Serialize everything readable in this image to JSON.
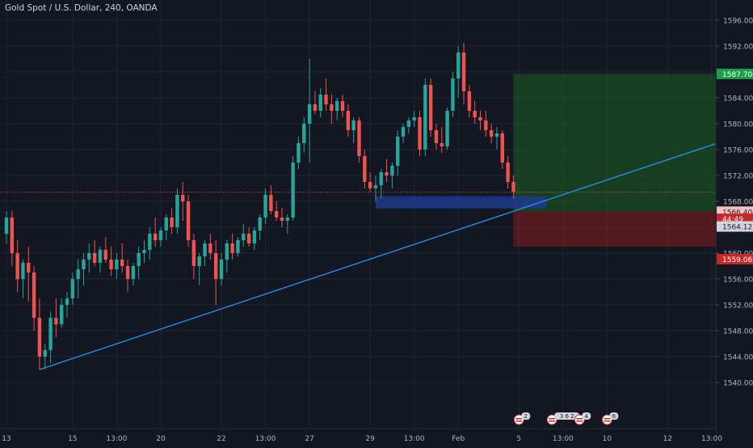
{
  "title": "Gold Spot / U.S. Dollar, 240, OANDA",
  "colors": {
    "background": "#131722",
    "grid": "#1f2433",
    "text": "#b2b5be",
    "up": "#26a69a",
    "down": "#ef5350",
    "trendline": "#2196f3",
    "target_zone": "#1b5e20",
    "stop_zone": "#7f1d1d",
    "entry_zone": "#1e3a8a"
  },
  "chart_data": {
    "type": "candlestick",
    "symbol": "Gold Spot / U.S. Dollar",
    "interval": "240",
    "source": "OANDA",
    "y_ticks": [
      1540,
      1544,
      1548,
      1552,
      1556,
      1560,
      1564,
      1568,
      1572,
      1576,
      1580,
      1584,
      1588,
      1592,
      1596
    ],
    "y_tick_labels": [
      "1540.000",
      "1544.000",
      "1548.000",
      "1552.000",
      "1556.000",
      "1560.000",
      "1564.000",
      "1568.000",
      "1572.000",
      "1576.000",
      "1580.000",
      "1584.000",
      "1588.000",
      "1592.000",
      "1596.000"
    ],
    "x_labels": [
      {
        "label": "13",
        "bar": 0
      },
      {
        "label": "15",
        "bar": 12
      },
      {
        "label": "13:00",
        "bar": 20
      },
      {
        "label": "20",
        "bar": 28
      },
      {
        "label": "22",
        "bar": 39
      },
      {
        "label": "13:00",
        "bar": 47
      },
      {
        "label": "27",
        "bar": 55
      },
      {
        "label": "29",
        "bar": 66
      },
      {
        "label": "13:00",
        "bar": 74
      },
      {
        "label": "Feb",
        "bar": 82
      },
      {
        "label": "5",
        "bar": 93
      },
      {
        "label": "13:00",
        "bar": 101
      },
      {
        "label": "10",
        "bar": 109
      },
      {
        "label": "12",
        "bar": 120
      },
      {
        "label": "13:00",
        "bar": 128
      }
    ],
    "candles": [
      [
        1563.0,
        1566.5,
        1561.5,
        1565.5
      ],
      [
        1565.5,
        1566.5,
        1558.0,
        1560.0
      ],
      [
        1560.0,
        1562.0,
        1554.0,
        1556.0
      ],
      [
        1556.0,
        1559.0,
        1553.0,
        1558.5
      ],
      [
        1558.5,
        1561.0,
        1552.5,
        1557.0
      ],
      [
        1557.0,
        1558.0,
        1548.0,
        1550.0
      ],
      [
        1550.0,
        1553.0,
        1542.0,
        1544.0
      ],
      [
        1544.0,
        1546.0,
        1542.0,
        1545.0
      ],
      [
        1545.0,
        1551.0,
        1543.0,
        1550.0
      ],
      [
        1550.0,
        1553.0,
        1547.0,
        1549.0
      ],
      [
        1549.0,
        1553.0,
        1548.5,
        1552.0
      ],
      [
        1552.0,
        1554.0,
        1550.0,
        1553.0
      ],
      [
        1553.0,
        1557.0,
        1552.0,
        1556.0
      ],
      [
        1556.0,
        1559.0,
        1553.0,
        1557.5
      ],
      [
        1557.5,
        1560.0,
        1555.0,
        1559.0
      ],
      [
        1559.0,
        1561.5,
        1557.0,
        1560.0
      ],
      [
        1560.0,
        1562.0,
        1558.0,
        1558.5
      ],
      [
        1558.5,
        1561.0,
        1557.0,
        1560.5
      ],
      [
        1560.5,
        1562.5,
        1558.5,
        1559.0
      ],
      [
        1559.0,
        1561.0,
        1556.5,
        1557.5
      ],
      [
        1557.5,
        1560.0,
        1556.0,
        1559.0
      ],
      [
        1559.0,
        1561.5,
        1557.0,
        1558.0
      ],
      [
        1558.0,
        1559.0,
        1554.0,
        1556.0
      ],
      [
        1556.0,
        1558.5,
        1555.0,
        1558.0
      ],
      [
        1558.0,
        1561.0,
        1556.0,
        1560.0
      ],
      [
        1560.0,
        1562.0,
        1558.5,
        1560.5
      ],
      [
        1560.5,
        1564.0,
        1559.0,
        1563.0
      ],
      [
        1563.0,
        1565.5,
        1561.0,
        1562.0
      ],
      [
        1562.0,
        1564.0,
        1561.0,
        1563.5
      ],
      [
        1563.5,
        1566.0,
        1562.0,
        1565.5
      ],
      [
        1565.5,
        1567.0,
        1563.0,
        1564.0
      ],
      [
        1564.0,
        1570.0,
        1563.0,
        1569.0
      ],
      [
        1569.0,
        1571.0,
        1565.0,
        1568.0
      ],
      [
        1568.0,
        1569.0,
        1561.0,
        1562.0
      ],
      [
        1562.0,
        1563.0,
        1556.0,
        1558.0
      ],
      [
        1558.0,
        1560.0,
        1555.0,
        1559.5
      ],
      [
        1559.5,
        1562.0,
        1558.0,
        1561.5
      ],
      [
        1561.5,
        1563.0,
        1559.0,
        1560.0
      ],
      [
        1560.0,
        1562.0,
        1552.0,
        1556.0
      ],
      [
        1556.0,
        1560.0,
        1555.0,
        1559.0
      ],
      [
        1559.0,
        1562.0,
        1557.0,
        1561.5
      ],
      [
        1561.5,
        1563.0,
        1559.0,
        1560.0
      ],
      [
        1560.0,
        1562.5,
        1559.5,
        1562.0
      ],
      [
        1562.0,
        1564.5,
        1561.0,
        1563.0
      ],
      [
        1563.0,
        1564.0,
        1561.0,
        1561.5
      ],
      [
        1561.5,
        1564.0,
        1560.5,
        1563.5
      ],
      [
        1563.5,
        1566.0,
        1562.0,
        1565.5
      ],
      [
        1565.5,
        1570.0,
        1564.5,
        1569.0
      ],
      [
        1569.0,
        1570.5,
        1566.0,
        1566.5
      ],
      [
        1566.5,
        1568.0,
        1565.0,
        1565.5
      ],
      [
        1565.5,
        1567.0,
        1564.0,
        1565.0
      ],
      [
        1565.0,
        1566.0,
        1563.0,
        1565.5
      ],
      [
        1565.5,
        1575.0,
        1565.0,
        1574.0
      ],
      [
        1574.0,
        1578.0,
        1573.0,
        1577.0
      ],
      [
        1577.0,
        1581.0,
        1575.5,
        1580.0
      ],
      [
        1580.0,
        1590.0,
        1574.0,
        1583.0
      ],
      [
        1583.0,
        1585.0,
        1581.5,
        1582.0
      ],
      [
        1582.0,
        1585.5,
        1581.0,
        1584.5
      ],
      [
        1584.5,
        1587.0,
        1582.0,
        1583.0
      ],
      [
        1583.0,
        1584.5,
        1580.0,
        1582.0
      ],
      [
        1582.0,
        1584.0,
        1580.5,
        1583.5
      ],
      [
        1583.5,
        1584.5,
        1581.0,
        1582.0
      ],
      [
        1582.0,
        1583.0,
        1578.0,
        1579.0
      ],
      [
        1579.0,
        1581.0,
        1577.0,
        1580.5
      ],
      [
        1580.5,
        1581.0,
        1574.0,
        1575.0
      ],
      [
        1575.0,
        1576.0,
        1570.0,
        1571.0
      ],
      [
        1571.0,
        1572.5,
        1569.5,
        1570.0
      ],
      [
        1570.0,
        1572.0,
        1568.0,
        1570.5
      ],
      [
        1570.5,
        1573.0,
        1568.5,
        1572.5
      ],
      [
        1572.5,
        1574.5,
        1571.0,
        1572.0
      ],
      [
        1572.0,
        1574.0,
        1570.0,
        1573.5
      ],
      [
        1573.5,
        1579.0,
        1572.0,
        1578.0
      ],
      [
        1578.0,
        1580.0,
        1577.0,
        1579.5
      ],
      [
        1579.5,
        1581.0,
        1578.5,
        1580.5
      ],
      [
        1580.5,
        1582.0,
        1579.5,
        1581.0
      ],
      [
        1581.0,
        1582.0,
        1575.0,
        1576.0
      ],
      [
        1576.0,
        1587.0,
        1575.0,
        1586.0
      ],
      [
        1586.0,
        1587.0,
        1578.0,
        1579.0
      ],
      [
        1579.0,
        1580.0,
        1576.0,
        1577.0
      ],
      [
        1577.0,
        1579.5,
        1575.5,
        1576.5
      ],
      [
        1576.5,
        1582.5,
        1576.0,
        1582.0
      ],
      [
        1582.0,
        1588.0,
        1581.0,
        1587.0
      ],
      [
        1587.0,
        1592.0,
        1584.0,
        1591.0
      ],
      [
        1591.0,
        1592.5,
        1583.0,
        1585.0
      ],
      [
        1585.0,
        1586.0,
        1581.0,
        1582.0
      ],
      [
        1582.0,
        1583.5,
        1580.0,
        1581.0
      ],
      [
        1581.0,
        1582.0,
        1579.0,
        1580.5
      ],
      [
        1580.5,
        1582.0,
        1578.0,
        1579.0
      ],
      [
        1579.0,
        1580.0,
        1577.0,
        1578.0
      ],
      [
        1578.0,
        1579.5,
        1576.0,
        1578.5
      ],
      [
        1578.5,
        1579.0,
        1573.0,
        1574.0
      ],
      [
        1574.0,
        1575.0,
        1570.0,
        1571.0
      ],
      [
        1571.0,
        1572.0,
        1568.5,
        1569.5
      ]
    ],
    "current_price_line": 1569.4,
    "trendline": {
      "from": {
        "bar": 6,
        "price": 1542.0
      },
      "to": {
        "bar": 142,
        "price": 1580.7
      }
    },
    "position": {
      "start_bar": 92,
      "end_bar": 129,
      "target": 1587.704,
      "entry": 1566.4,
      "stop": 1561.0
    },
    "entry_zone": {
      "start_bar": 67,
      "end_bar": 98,
      "top": 1568.8,
      "bottom": 1566.9
    },
    "price_labels": [
      {
        "text": "1587.704",
        "price": 1587.704,
        "bg": "#1e9e4a",
        "fg": "#ffffff"
      },
      {
        "text": "1566.400",
        "price": 1566.4,
        "bg": "#f1c2c2",
        "fg": "#222222"
      },
      {
        "text": "44:49",
        "price": 1565.3,
        "bg": "#c62828",
        "fg": "#ffffff"
      },
      {
        "text": "1564.122",
        "price": 1564.12,
        "bg": "#d1d4dc",
        "fg": "#222222"
      },
      {
        "text": "1559.069",
        "price": 1559.069,
        "bg": "#c62828",
        "fg": "#ffffff"
      }
    ],
    "events": [
      {
        "bar": 93,
        "count": "2"
      },
      {
        "bar": 99,
        "count": "3 6 2"
      },
      {
        "bar": 104,
        "count": "4"
      },
      {
        "bar": 109,
        "count": "6"
      }
    ]
  }
}
